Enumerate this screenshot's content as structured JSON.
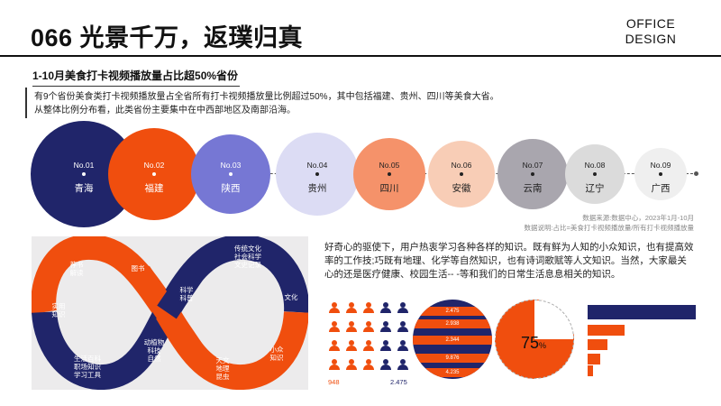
{
  "header": {
    "title": "066 光景千万，返璞归真",
    "brand_line1": "OFFICE",
    "brand_line2": "DESIGN"
  },
  "section": {
    "subtitle": "1-10月美食打卡视频播放量占比超50%省份",
    "intro_line1": "有9个省份美食类打卡视频播放量占全省所有打卡视频播放量比例超过50%，其中包括福建、贵州、四川等美食大省。",
    "intro_line2": "从整体比例分布看，此类省份主要集中在中西部地区及南部沿海。"
  },
  "provinces": [
    {
      "no": "No.01",
      "name": "青海",
      "color": "#20256a",
      "text": "#ffffff"
    },
    {
      "no": "No.02",
      "name": "福建",
      "color": "#f04e0e",
      "text": "#ffffff"
    },
    {
      "no": "No.03",
      "name": "陕西",
      "color": "#7677d4",
      "text": "#ffffff"
    },
    {
      "no": "No.04",
      "name": "贵州",
      "color": "#dcdcf4",
      "text": "#222222"
    },
    {
      "no": "No.05",
      "name": "四川",
      "color": "#f5926a",
      "text": "#222222"
    },
    {
      "no": "No.06",
      "name": "安徽",
      "color": "#f8cdb6",
      "text": "#222222"
    },
    {
      "no": "No.07",
      "name": "云南",
      "color": "#a9a6ae",
      "text": "#222222"
    },
    {
      "no": "No.08",
      "name": "辽宁",
      "color": "#dbdbdb",
      "text": "#222222"
    },
    {
      "no": "No.09",
      "name": "广西",
      "color": "#efefef",
      "text": "#222222"
    }
  ],
  "source": {
    "line1": "数据来源:数据中心，2023年1月-10月",
    "line2": "数据说明:占比=美食打卡视频播放量/所有打卡视频播放量"
  },
  "infinity_labels": {
    "recommend": "荐书\n解读",
    "books": "图书",
    "practical": "实用\n知识",
    "life": "生活百科\n职场知识\n学习工具",
    "animals": "动植物\n科技\n自然",
    "science_center": "科学\n科普",
    "culture_top": "传统文化\n社会科学\n文史记录",
    "culture": "文化",
    "niche": "小众\n知识",
    "astronomy": "天文\n地理\n昆虫"
  },
  "paragraph": "好奇心的驱使下，用户热衷学习各种各样的知识。既有鲜为人知的小众知识，也有提高效率的工作技;巧既有地理、化学等自然知识，也有诗词歌赋等人文知识。当然，大家最关心的还是医疗健康、校园生活-- -等和我们的日常生活息息相关的知识。",
  "people_counts": {
    "left": "948",
    "right": "2.475"
  },
  "stack_values": [
    "2.475",
    "2.938",
    "2.344",
    "9.876",
    "4.235"
  ],
  "pie": {
    "value": 75,
    "label": "75",
    "unit": "%"
  },
  "hbars": [
    1.0,
    0.34,
    0.18,
    0.12,
    0.05
  ],
  "colors": {
    "navy": "#20256a",
    "orange": "#f04e0e",
    "grey_panel": "#ecebec"
  }
}
